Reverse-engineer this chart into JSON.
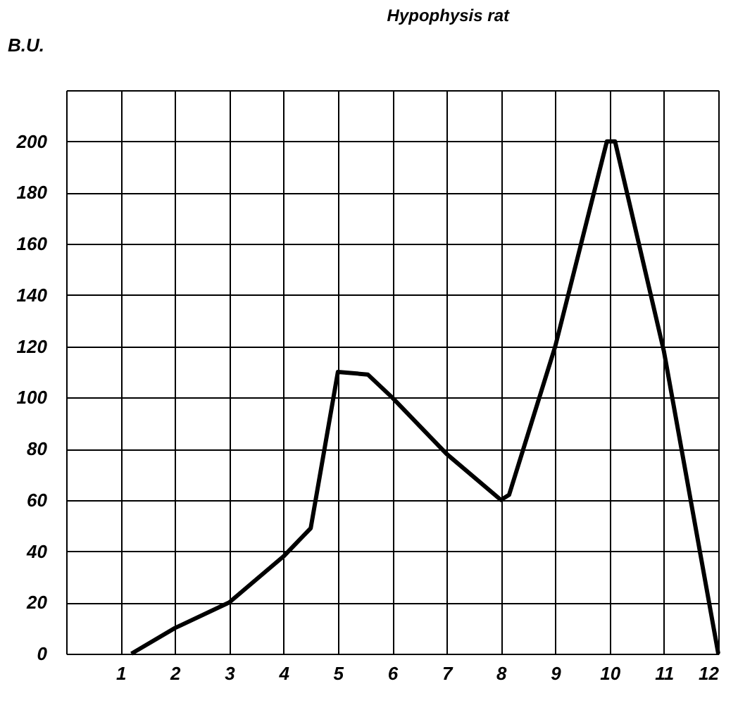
{
  "chart_data": {
    "type": "line",
    "title": "Hypophysis rat",
    "ylabel": "B.U.",
    "x": [
      1.2,
      2,
      3,
      4,
      4.5,
      5,
      5.55,
      6,
      7,
      8,
      8.15,
      9,
      9.95,
      10.1,
      11,
      12
    ],
    "series": [
      {
        "color": "#000000",
        "values": [
          0,
          10,
          20,
          38,
          49,
          110,
          109,
          100,
          78,
          60,
          62,
          120,
          200,
          200,
          118,
          0
        ]
      }
    ],
    "xlim": [
      0,
      12
    ],
    "xticks": [
      1,
      2,
      3,
      4,
      5,
      6,
      7,
      8,
      9,
      10,
      11,
      12
    ],
    "ylim": [
      0,
      220
    ],
    "yticks": [
      0,
      20,
      40,
      60,
      80,
      100,
      120,
      140,
      160,
      180,
      200,
      {
        "value": 220,
        "label": null
      }
    ],
    "grid": true,
    "marker": "none",
    "line_style": "solid"
  }
}
